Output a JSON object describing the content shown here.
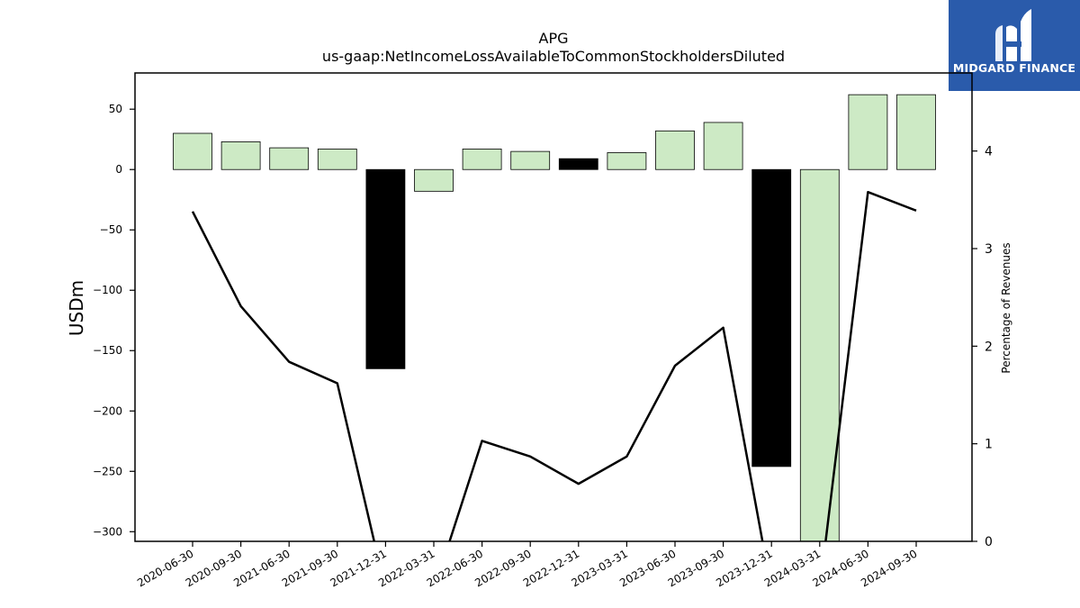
{
  "logo": {
    "text": "MIDGARD FINANCE",
    "background": "#2a5bab",
    "icon": "midgard-logo-icon"
  },
  "chart_data": {
    "type": "bar",
    "title": "APG",
    "subtitle": "us-gaap:NetIncomeLossAvailableToCommonStockholdersDiluted",
    "ylabel": "USDm",
    "y2label": "Percentage of Revenues",
    "ylim": [
      -308,
      80
    ],
    "y2lim": [
      0,
      4.8
    ],
    "yticks": [
      50,
      0,
      -50,
      -100,
      -150,
      -200,
      -250,
      -300
    ],
    "y2ticks": [
      4,
      3,
      2,
      1,
      0
    ],
    "categories": [
      "2020-06-30",
      "2020-09-30",
      "2021-06-30",
      "2021-09-30",
      "2021-12-31",
      "2022-03-31",
      "2022-06-30",
      "2022-09-30",
      "2022-12-31",
      "2023-03-31",
      "2023-06-30",
      "2023-09-30",
      "2023-12-31",
      "2024-03-31",
      "2024-06-30",
      "2024-09-30"
    ],
    "series": [
      {
        "values": [
          30,
          23,
          18,
          17,
          -165,
          -18,
          17,
          15,
          9,
          14,
          32,
          39,
          -246,
          -308,
          62,
          62
        ],
        "colors": [
          "#cdeac5",
          "#cdeac5",
          "#cdeac5",
          "#cdeac5",
          "#000000",
          "#cdeac5",
          "#cdeac5",
          "#cdeac5",
          "#000000",
          "#cdeac5",
          "#cdeac5",
          "#cdeac5",
          "#000000",
          "#cdeac5",
          "#cdeac5",
          "#cdeac5"
        ]
      },
      {
        "axis": "right",
        "type": "line",
        "color": "#000000",
        "values": [
          3.38,
          2.41,
          1.84,
          1.62,
          -0.5,
          -0.5,
          1.03,
          0.87,
          0.59,
          0.87,
          1.8,
          2.19,
          -0.5,
          -0.5,
          3.58,
          3.39
        ]
      }
    ],
    "grid": false,
    "legend": "none"
  }
}
